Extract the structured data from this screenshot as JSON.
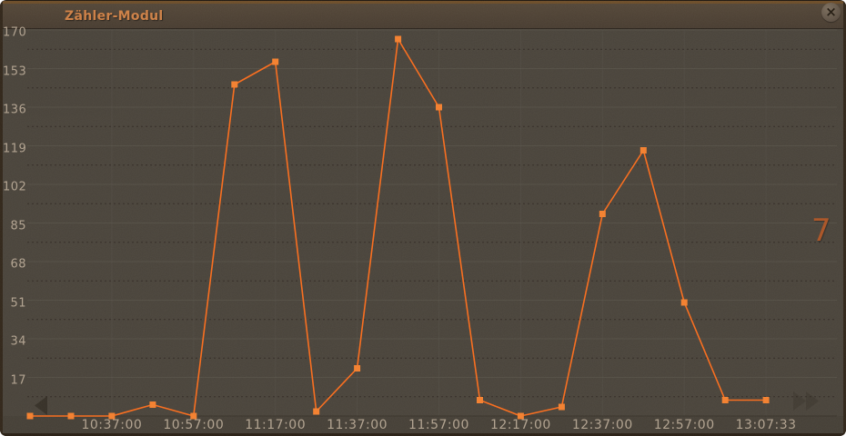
{
  "window": {
    "title": "Zähler-Modul",
    "close_glyph": "×"
  },
  "current_value_display": "7",
  "colors": {
    "accent_orange": "#fb6d1c",
    "marker_orange": "#f5812f",
    "title_text": "#cf8146",
    "axis_text": "#b2a390",
    "value_text": "#ac5526",
    "plot_background": "#4a443b",
    "titlebar_background": "#4c4034",
    "frame_brown": "#6e4e29"
  },
  "chart_data": {
    "type": "line",
    "title": "Zähler-Modul",
    "xlabel": "",
    "ylabel": "",
    "ylim": [
      0,
      170
    ],
    "y_ticks": [
      170,
      153,
      136,
      119,
      102,
      85,
      68,
      51,
      34,
      17
    ],
    "x_tick_labels": [
      "10:37:00",
      "10:57:00",
      "11:17:00",
      "11:37:00",
      "11:57:00",
      "12:17:00",
      "12:37:00",
      "12:57:00",
      "13:07:33"
    ],
    "x_tick_point_indices": [
      2,
      4,
      6,
      8,
      10,
      12,
      14,
      16,
      18
    ],
    "x_interval_minutes": 10,
    "values": [
      0,
      0,
      0,
      5,
      0,
      146,
      156,
      2,
      21,
      166,
      136,
      7,
      0,
      4,
      89,
      117,
      50,
      7,
      7
    ],
    "grid": "horizontal major solid + minor dashed, faint vertical at ticks",
    "legend": "none",
    "line_color": "#fb6d1c",
    "marker_color": "#f5812f",
    "marker_shape": "square"
  }
}
